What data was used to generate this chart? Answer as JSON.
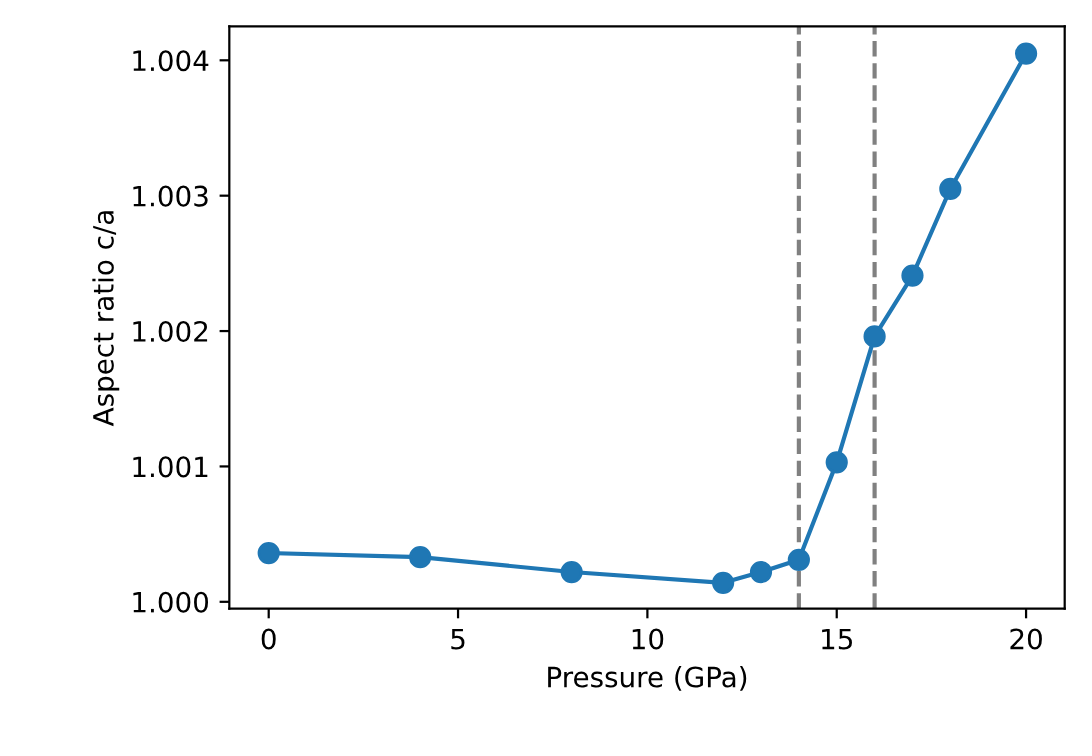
{
  "chart_data": {
    "type": "line",
    "xlabel": "Pressure (GPa)",
    "ylabel": "Aspect ratio c/a",
    "x": [
      0,
      4,
      8,
      12,
      13,
      14,
      15,
      16,
      17,
      18,
      20
    ],
    "series": [
      {
        "color": "#1f77b4",
        "values": [
          1.00036,
          1.00033,
          1.00022,
          1.00014,
          1.00022,
          1.00031,
          1.00103,
          1.00196,
          1.00241,
          1.00305,
          1.00405
        ]
      }
    ],
    "marker": "circle",
    "line_style": "solid",
    "xlim": [
      -1.04,
      21.02
    ],
    "ylim": [
      0.99995,
      1.00425
    ],
    "xticks": [
      0,
      5,
      10,
      15,
      20
    ],
    "yticks": [
      {
        "value": 1.0,
        "label": "1.000"
      },
      {
        "value": 1.001,
        "label": "1.001"
      },
      {
        "value": 1.002,
        "label": "1.002"
      },
      {
        "value": 1.003,
        "label": "1.003"
      },
      {
        "value": 1.004,
        "label": "1.004"
      }
    ],
    "ref_lines": [
      {
        "axis": "x",
        "value": 14,
        "color": "#808080",
        "line_style": "dashed"
      },
      {
        "axis": "x",
        "value": 16,
        "color": "#808080",
        "line_style": "dashed"
      }
    ],
    "grid": false,
    "legend": false
  }
}
